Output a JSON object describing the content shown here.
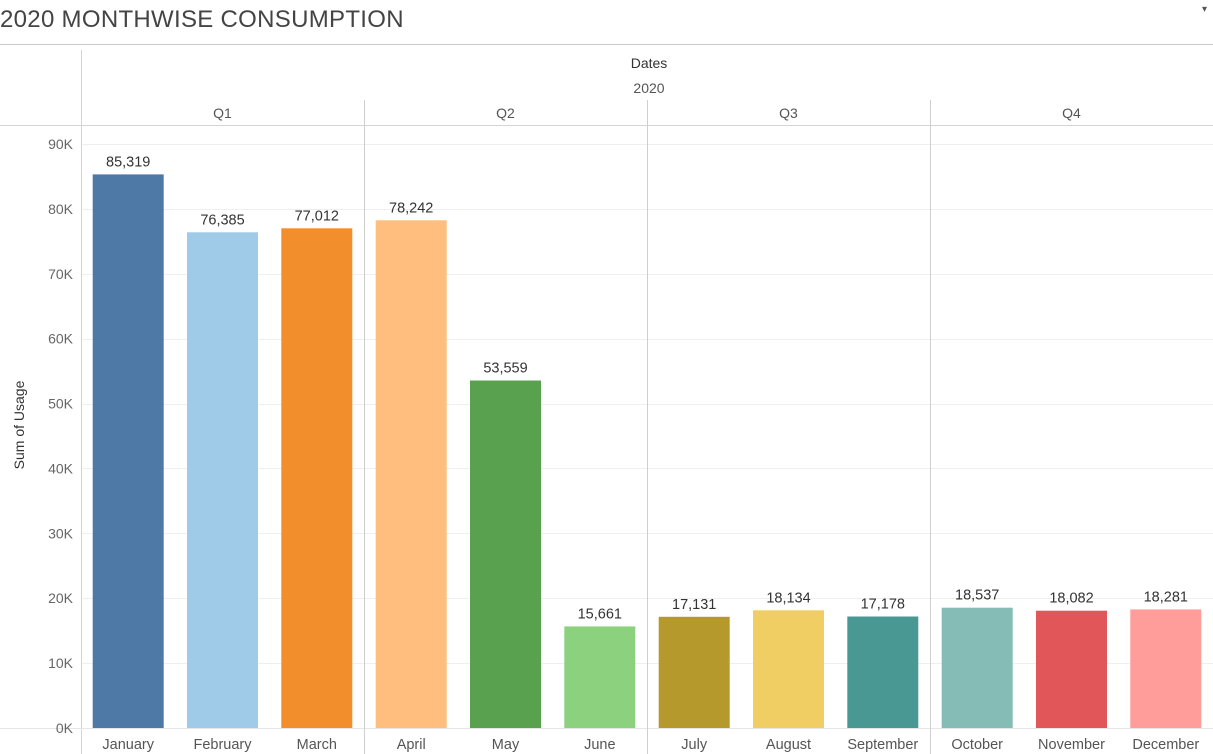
{
  "page": {
    "title": "2020 MONTHWISE CONSUMPTION",
    "dropdown_icon": "▾"
  },
  "chart_data": {
    "type": "bar",
    "title": "2020 MONTHWISE CONSUMPTION",
    "column_header": "Dates",
    "year": "2020",
    "quarters": [
      "Q1",
      "Q2",
      "Q3",
      "Q4"
    ],
    "ylabel": "Sum of Usage",
    "xlabel": "",
    "ylim": [
      0,
      90000
    ],
    "yticks": [
      0,
      10000,
      20000,
      30000,
      40000,
      50000,
      60000,
      70000,
      80000,
      90000
    ],
    "ytick_labels": [
      "0K",
      "10K",
      "20K",
      "30K",
      "40K",
      "50K",
      "60K",
      "70K",
      "80K",
      "90K"
    ],
    "grid": true,
    "categories": [
      "January",
      "February",
      "March",
      "April",
      "May",
      "June",
      "July",
      "August",
      "September",
      "October",
      "November",
      "December"
    ],
    "values": [
      85319,
      76385,
      77012,
      78242,
      53559,
      15661,
      17131,
      18134,
      17178,
      18537,
      18082,
      18281
    ],
    "value_labels": [
      "85,319",
      "76,385",
      "77,012",
      "78,242",
      "53,559",
      "15,661",
      "17,131",
      "18,134",
      "17,178",
      "18,537",
      "18,082",
      "18,281"
    ],
    "colors": [
      "#4e79a7",
      "#a0cbe8",
      "#f28e2b",
      "#ffbe7d",
      "#59a14f",
      "#8cd17d",
      "#b6992d",
      "#f1ce63",
      "#499894",
      "#86bcb6",
      "#e15759",
      "#ff9d9a"
    ]
  }
}
